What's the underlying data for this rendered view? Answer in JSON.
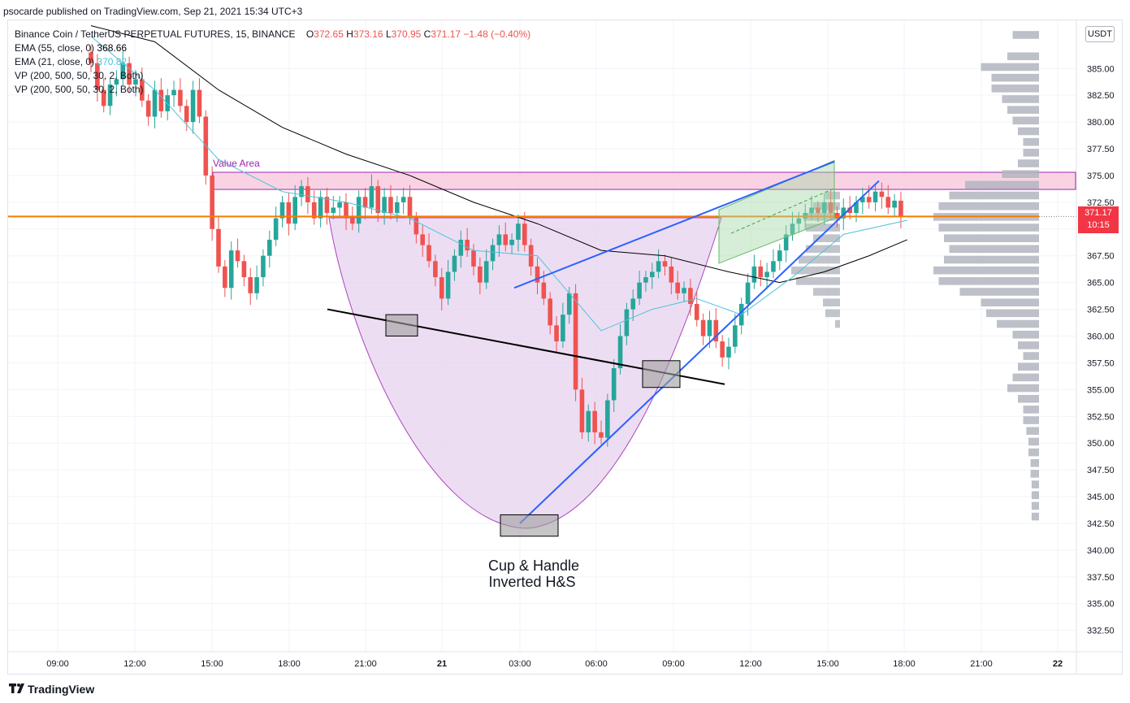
{
  "header": {
    "publisher_line": "psocarde published on TradingView.com, Sep 21, 2021 15:34 UTC+3"
  },
  "legend": {
    "symbol": "Binance Coin / TetherUS PERPETUAL FUTURES, 15, BINANCE",
    "ohlc": {
      "o_label": "O",
      "o": "372.65",
      "h_label": "H",
      "h": "373.16",
      "l_label": "L",
      "l": "370.95",
      "c_label": "C",
      "c": "371.17",
      "change": "−1.48 (−0.40%)"
    },
    "ema55": {
      "label": "EMA (55, close, 0)",
      "value": "368.66"
    },
    "ema21": {
      "label": "EMA (21, close, 0)",
      "value": "370.82"
    },
    "vp1": "VP (200, 500, 50, 30, 2, Both)",
    "vp2": "VP (200, 500, 50, 30, 2, Both)"
  },
  "currency_button": "USDT",
  "last_price": {
    "value": "371.17",
    "countdown": "10:15"
  },
  "annotations": {
    "value_area": "Value Area",
    "pattern_line1": "Cup & Handle",
    "pattern_line2": "Inverted H&S"
  },
  "footer": {
    "brand": "TradingView"
  },
  "colors": {
    "up": "#26a69a",
    "down": "#ef5350",
    "ema55": "#000000",
    "ema21": "#4fc3d8",
    "trendline": "#2962ff",
    "cup_fill": "#e6cfee",
    "value_area": "#f8c8dc",
    "volume_profile": "#b2b5be",
    "last_price_line": "#f57c00"
  },
  "chart_data": {
    "type": "candlestick",
    "title": "Binance Coin / TetherUS PERPETUAL FUTURES, 15, BINANCE",
    "xlabel": "",
    "ylabel": "",
    "ylim": [
      330.5,
      389.5
    ],
    "x_tick_labels": [
      "09:00",
      "12:00",
      "15:00",
      "18:00",
      "21:00",
      "21",
      "03:00",
      "06:00",
      "09:00",
      "12:00",
      "15:00",
      "18:00",
      "21:00",
      "22"
    ],
    "y_tick_labels": [
      "332.50",
      "335.00",
      "337.50",
      "340.00",
      "342.50",
      "345.00",
      "347.50",
      "350.00",
      "352.50",
      "355.00",
      "357.50",
      "360.00",
      "362.50",
      "365.00",
      "367.50",
      "370.00",
      "372.50",
      "375.00",
      "377.50",
      "380.00",
      "382.50",
      "385.00"
    ],
    "last_price": 371.17,
    "value_area": [
      373.7,
      375.3
    ],
    "closes": [
      385.5,
      383.0,
      381.5,
      383.5,
      384.0,
      385.5,
      383.5,
      384.0,
      382.0,
      380.5,
      383.0,
      381.0,
      382.5,
      383.0,
      381.5,
      380.0,
      383.0,
      380.5,
      375.0,
      370.0,
      366.5,
      364.5,
      368.0,
      367.0,
      365.5,
      364.0,
      365.5,
      367.5,
      369.0,
      371.0,
      372.5,
      370.5,
      373.0,
      374.0,
      372.5,
      371.0,
      373.0,
      371.5,
      372.0,
      372.5,
      371.0,
      370.5,
      373.0,
      372.0,
      374.0,
      371.5,
      373.0,
      371.5,
      372.5,
      373.0,
      371.0,
      369.5,
      368.5,
      367.0,
      365.5,
      363.5,
      366.0,
      367.5,
      369.0,
      368.0,
      366.5,
      365.0,
      367.0,
      368.5,
      369.5,
      368.5,
      369.0,
      370.5,
      368.5,
      366.5,
      365.0,
      363.5,
      361.0,
      359.5,
      362.0,
      364.0,
      355.0,
      351.0,
      353.0,
      351.0,
      350.5,
      354.0,
      357.0,
      360.0,
      362.5,
      363.5,
      365.0,
      365.5,
      366.0,
      367.0,
      366.5,
      365.0,
      364.0,
      364.5,
      363.0,
      361.5,
      360.0,
      361.5,
      359.5,
      358.0,
      359.0,
      361.0,
      363.0,
      365.0,
      366.5,
      365.5,
      366.0,
      367.0,
      368.0,
      369.5,
      370.5,
      371.0,
      371.5,
      372.0,
      371.5,
      372.5,
      371.5,
      371.0,
      372.0,
      371.5,
      372.5,
      373.0,
      372.5,
      373.5,
      373.0,
      372.0,
      372.65,
      371.17
    ],
    "ema55": [
      {
        "x": 0,
        "y": 389.0
      },
      {
        "x": 10,
        "y": 387.5
      },
      {
        "x": 20,
        "y": 383.0
      },
      {
        "x": 30,
        "y": 379.5
      },
      {
        "x": 40,
        "y": 377.0
      },
      {
        "x": 50,
        "y": 375.0
      },
      {
        "x": 60,
        "y": 372.5
      },
      {
        "x": 70,
        "y": 370.5
      },
      {
        "x": 80,
        "y": 368.0
      },
      {
        "x": 90,
        "y": 367.5
      },
      {
        "x": 100,
        "y": 366.0
      },
      {
        "x": 108,
        "y": 365.0
      },
      {
        "x": 115,
        "y": 366.0
      },
      {
        "x": 122,
        "y": 367.5
      },
      {
        "x": 128,
        "y": 369.0
      }
    ],
    "ema21": [
      {
        "x": 0,
        "y": 388.0
      },
      {
        "x": 10,
        "y": 383.0
      },
      {
        "x": 20,
        "y": 376.5
      },
      {
        "x": 30,
        "y": 373.5
      },
      {
        "x": 40,
        "y": 372.5
      },
      {
        "x": 50,
        "y": 371.0
      },
      {
        "x": 60,
        "y": 368.0
      },
      {
        "x": 70,
        "y": 367.5
      },
      {
        "x": 75,
        "y": 364.0
      },
      {
        "x": 80,
        "y": 360.5
      },
      {
        "x": 88,
        "y": 362.5
      },
      {
        "x": 95,
        "y": 363.5
      },
      {
        "x": 102,
        "y": 362.0
      },
      {
        "x": 110,
        "y": 365.5
      },
      {
        "x": 118,
        "y": 369.5
      },
      {
        "x": 128,
        "y": 370.82
      }
    ],
    "volume_profile_right": [
      {
        "price": 388.0,
        "size": 0.25
      },
      {
        "price": 386.0,
        "size": 0.3
      },
      {
        "price": 385.0,
        "size": 0.55
      },
      {
        "price": 384.0,
        "size": 0.45
      },
      {
        "price": 383.0,
        "size": 0.45
      },
      {
        "price": 382.0,
        "size": 0.35
      },
      {
        "price": 381.0,
        "size": 0.3
      },
      {
        "price": 380.0,
        "size": 0.25
      },
      {
        "price": 379.0,
        "size": 0.2
      },
      {
        "price": 378.0,
        "size": 0.15
      },
      {
        "price": 377.0,
        "size": 0.15
      },
      {
        "price": 376.0,
        "size": 0.2
      },
      {
        "price": 375.0,
        "size": 0.35
      },
      {
        "price": 374.0,
        "size": 0.7
      },
      {
        "price": 373.0,
        "size": 0.85
      },
      {
        "price": 372.0,
        "size": 0.95
      },
      {
        "price": 371.0,
        "size": 1.0
      },
      {
        "price": 370.0,
        "size": 0.95
      },
      {
        "price": 369.0,
        "size": 0.9
      },
      {
        "price": 368.0,
        "size": 0.85
      },
      {
        "price": 367.0,
        "size": 0.9
      },
      {
        "price": 366.0,
        "size": 1.0
      },
      {
        "price": 365.0,
        "size": 0.95
      },
      {
        "price": 364.0,
        "size": 0.75
      },
      {
        "price": 363.0,
        "size": 0.55
      },
      {
        "price": 362.0,
        "size": 0.5
      },
      {
        "price": 361.0,
        "size": 0.4
      },
      {
        "price": 360.0,
        "size": 0.25
      },
      {
        "price": 359.0,
        "size": 0.2
      },
      {
        "price": 358.0,
        "size": 0.15
      },
      {
        "price": 357.0,
        "size": 0.2
      },
      {
        "price": 356.0,
        "size": 0.25
      },
      {
        "price": 355.0,
        "size": 0.3
      },
      {
        "price": 354.0,
        "size": 0.2
      },
      {
        "price": 353.0,
        "size": 0.15
      },
      {
        "price": 352.0,
        "size": 0.15
      },
      {
        "price": 351.0,
        "size": 0.12
      },
      {
        "price": 350.0,
        "size": 0.1
      },
      {
        "price": 349.0,
        "size": 0.1
      },
      {
        "price": 348.0,
        "size": 0.08
      },
      {
        "price": 347.0,
        "size": 0.08
      },
      {
        "price": 346.0,
        "size": 0.07
      },
      {
        "price": 345.0,
        "size": 0.07
      },
      {
        "price": 344.0,
        "size": 0.07
      },
      {
        "price": 343.0,
        "size": 0.07
      }
    ],
    "volume_profile_mid": [
      {
        "price": 373.0,
        "size": 0.3
      },
      {
        "price": 372.0,
        "size": 0.55
      },
      {
        "price": 371.0,
        "size": 0.75
      },
      {
        "price": 370.0,
        "size": 0.7
      },
      {
        "price": 369.0,
        "size": 0.55
      },
      {
        "price": 368.0,
        "size": 0.7
      },
      {
        "price": 367.0,
        "size": 0.85
      },
      {
        "price": 366.0,
        "size": 1.0
      },
      {
        "price": 365.0,
        "size": 0.9
      },
      {
        "price": 364.0,
        "size": 0.55
      },
      {
        "price": 363.0,
        "size": 0.35
      },
      {
        "price": 362.0,
        "size": 0.3
      },
      {
        "price": 361.0,
        "size": 0.1
      }
    ]
  }
}
